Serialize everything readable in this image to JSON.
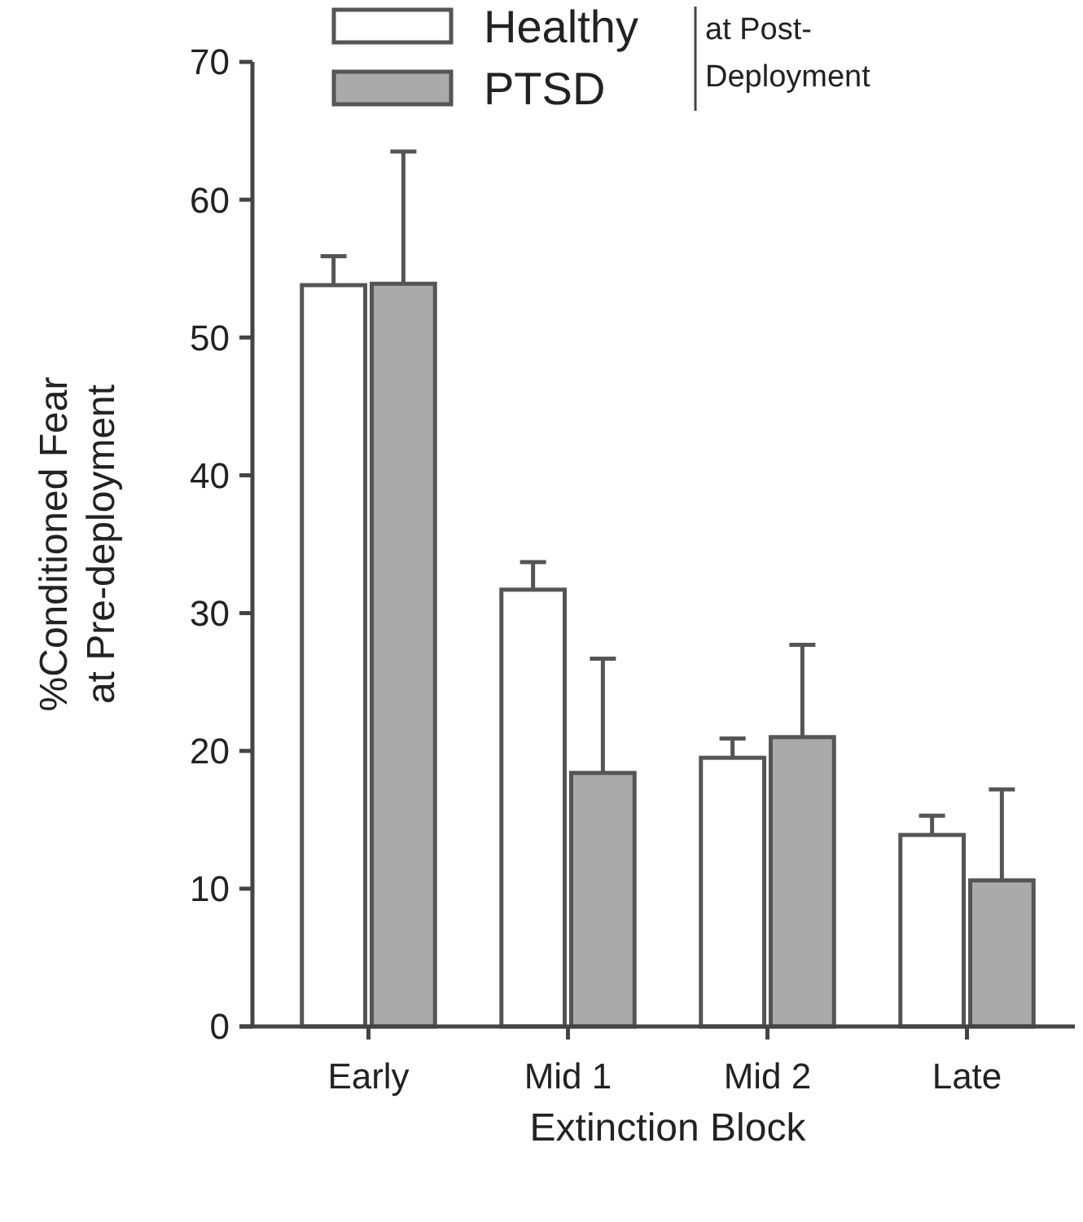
{
  "chart_data": {
    "type": "bar",
    "xlabel": "Extinction Block",
    "ylabel": "%Conditioned Fear\nat Pre-deployment",
    "legend_title": "at Post-\nDeployment",
    "legend": "top left",
    "categories": [
      "Early",
      "Mid 1",
      "Mid 2",
      "Late"
    ],
    "series": [
      {
        "name": "Healthy",
        "color": "#ffffff",
        "values": [
          53.8,
          31.7,
          19.5,
          13.9
        ],
        "errors": [
          [
            53.8,
            55.9
          ],
          [
            31.7,
            33.7
          ],
          [
            19.5,
            20.9
          ],
          [
            13.9,
            15.3
          ]
        ]
      },
      {
        "name": "PTSD",
        "color": "#aaaaaa",
        "values": [
          53.9,
          18.4,
          21.0,
          10.6
        ],
        "errors": [
          [
            53.9,
            63.5
          ],
          [
            18.4,
            26.7
          ],
          [
            21.0,
            27.7
          ],
          [
            10.6,
            17.2
          ]
        ]
      }
    ],
    "ylim": [
      0,
      70
    ],
    "yticks": [
      0,
      10,
      20,
      30,
      40,
      50,
      60,
      70
    ],
    "grid": false
  }
}
